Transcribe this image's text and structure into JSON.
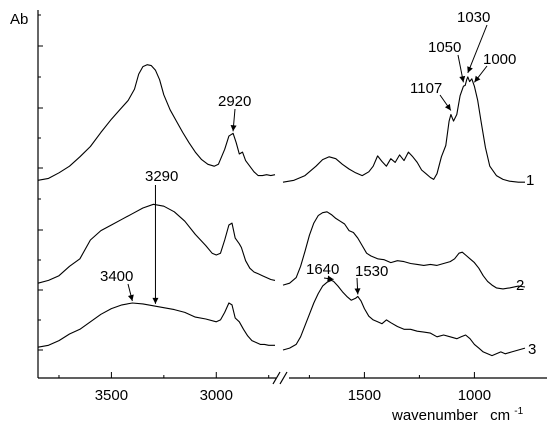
{
  "chart_data": {
    "type": "line",
    "title": "",
    "ylabel": "Ab",
    "xlabel": "wavenumber",
    "xunit": "cm",
    "xunit_sup": "-1",
    "x_reversed": true,
    "axis_break": true,
    "grid": false,
    "legend": "none",
    "xlim_left_panel": [
      3850,
      2720
    ],
    "xlim_right_panel": [
      1870,
      770
    ],
    "x_ticks": [
      {
        "value": 3500,
        "label": "3500"
      },
      {
        "value": 3000,
        "label": "3000"
      },
      {
        "value": 1500,
        "label": "1500"
      },
      {
        "value": 1000,
        "label": "1000"
      }
    ],
    "series": [
      {
        "name": "1",
        "offset": 0,
        "left": [
          [
            3850,
            0.05
          ],
          [
            3800,
            0.07
          ],
          [
            3750,
            0.13
          ],
          [
            3700,
            0.2
          ],
          [
            3650,
            0.3
          ],
          [
            3600,
            0.41
          ],
          [
            3550,
            0.56
          ],
          [
            3500,
            0.7
          ],
          [
            3460,
            0.8
          ],
          [
            3420,
            0.9
          ],
          [
            3390,
            1.02
          ],
          [
            3370,
            1.18
          ],
          [
            3350,
            1.26
          ],
          [
            3330,
            1.28
          ],
          [
            3310,
            1.27
          ],
          [
            3290,
            1.22
          ],
          [
            3270,
            1.12
          ],
          [
            3250,
            0.96
          ],
          [
            3220,
            0.8
          ],
          [
            3190,
            0.68
          ],
          [
            3160,
            0.56
          ],
          [
            3130,
            0.45
          ],
          [
            3100,
            0.35
          ],
          [
            3070,
            0.27
          ],
          [
            3040,
            0.22
          ],
          [
            3010,
            0.2
          ],
          [
            2990,
            0.22
          ],
          [
            2960,
            0.38
          ],
          [
            2940,
            0.52
          ],
          [
            2920,
            0.55
          ],
          [
            2905,
            0.45
          ],
          [
            2890,
            0.33
          ],
          [
            2875,
            0.35
          ],
          [
            2860,
            0.26
          ],
          [
            2840,
            0.2
          ],
          [
            2820,
            0.14
          ],
          [
            2800,
            0.1
          ],
          [
            2780,
            0.1
          ],
          [
            2760,
            0.11
          ],
          [
            2740,
            0.1
          ],
          [
            2720,
            0.11
          ]
        ],
        "right": [
          [
            1870,
            0.03
          ],
          [
            1820,
            0.05
          ],
          [
            1770,
            0.1
          ],
          [
            1720,
            0.2
          ],
          [
            1690,
            0.27
          ],
          [
            1660,
            0.3
          ],
          [
            1630,
            0.28
          ],
          [
            1600,
            0.22
          ],
          [
            1570,
            0.17
          ],
          [
            1540,
            0.13
          ],
          [
            1510,
            0.1
          ],
          [
            1480,
            0.14
          ],
          [
            1460,
            0.2
          ],
          [
            1440,
            0.31
          ],
          [
            1420,
            0.25
          ],
          [
            1400,
            0.2
          ],
          [
            1380,
            0.28
          ],
          [
            1360,
            0.24
          ],
          [
            1340,
            0.32
          ],
          [
            1320,
            0.26
          ],
          [
            1300,
            0.35
          ],
          [
            1280,
            0.3
          ],
          [
            1260,
            0.24
          ],
          [
            1240,
            0.16
          ],
          [
            1220,
            0.12
          ],
          [
            1200,
            0.08
          ],
          [
            1185,
            0.06
          ],
          [
            1170,
            0.12
          ],
          [
            1150,
            0.3
          ],
          [
            1130,
            0.42
          ],
          [
            1115,
            0.68
          ],
          [
            1107,
            0.75
          ],
          [
            1095,
            0.68
          ],
          [
            1080,
            0.75
          ],
          [
            1065,
            0.95
          ],
          [
            1050,
            1.05
          ],
          [
            1042,
            1.06
          ],
          [
            1035,
            1.12
          ],
          [
            1030,
            1.15
          ],
          [
            1022,
            1.1
          ],
          [
            1012,
            1.13
          ],
          [
            1000,
            1.05
          ],
          [
            985,
            0.9
          ],
          [
            970,
            0.68
          ],
          [
            950,
            0.4
          ],
          [
            930,
            0.2
          ],
          [
            900,
            0.1
          ],
          [
            870,
            0.06
          ],
          [
            840,
            0.04
          ],
          [
            800,
            0.03
          ],
          [
            770,
            0.03
          ]
        ]
      },
      {
        "name": "2",
        "offset": -1.0,
        "left": [
          [
            3850,
            0.04
          ],
          [
            3800,
            0.07
          ],
          [
            3750,
            0.12
          ],
          [
            3700,
            0.22
          ],
          [
            3650,
            0.3
          ],
          [
            3600,
            0.5
          ],
          [
            3550,
            0.6
          ],
          [
            3500,
            0.66
          ],
          [
            3450,
            0.72
          ],
          [
            3400,
            0.78
          ],
          [
            3350,
            0.84
          ],
          [
            3300,
            0.88
          ],
          [
            3250,
            0.86
          ],
          [
            3200,
            0.8
          ],
          [
            3150,
            0.7
          ],
          [
            3100,
            0.56
          ],
          [
            3050,
            0.44
          ],
          [
            3020,
            0.36
          ],
          [
            3000,
            0.34
          ],
          [
            2980,
            0.36
          ],
          [
            2960,
            0.5
          ],
          [
            2940,
            0.66
          ],
          [
            2925,
            0.68
          ],
          [
            2910,
            0.52
          ],
          [
            2890,
            0.46
          ],
          [
            2880,
            0.42
          ],
          [
            2860,
            0.28
          ],
          [
            2840,
            0.2
          ],
          [
            2820,
            0.16
          ],
          [
            2800,
            0.14
          ],
          [
            2780,
            0.12
          ],
          [
            2760,
            0.1
          ],
          [
            2740,
            0.08
          ],
          [
            2720,
            0.07
          ]
        ],
        "right": [
          [
            1870,
            0.02
          ],
          [
            1840,
            0.04
          ],
          [
            1810,
            0.1
          ],
          [
            1790,
            0.22
          ],
          [
            1770,
            0.38
          ],
          [
            1750,
            0.55
          ],
          [
            1730,
            0.68
          ],
          [
            1710,
            0.76
          ],
          [
            1690,
            0.79
          ],
          [
            1670,
            0.8
          ],
          [
            1650,
            0.77
          ],
          [
            1630,
            0.73
          ],
          [
            1610,
            0.7
          ],
          [
            1590,
            0.67
          ],
          [
            1570,
            0.6
          ],
          [
            1550,
            0.58
          ],
          [
            1530,
            0.52
          ],
          [
            1510,
            0.44
          ],
          [
            1490,
            0.36
          ],
          [
            1470,
            0.33
          ],
          [
            1440,
            0.3
          ],
          [
            1410,
            0.29
          ],
          [
            1380,
            0.26
          ],
          [
            1350,
            0.28
          ],
          [
            1320,
            0.27
          ],
          [
            1290,
            0.25
          ],
          [
            1260,
            0.24
          ],
          [
            1230,
            0.23
          ],
          [
            1200,
            0.24
          ],
          [
            1170,
            0.23
          ],
          [
            1140,
            0.25
          ],
          [
            1110,
            0.27
          ],
          [
            1090,
            0.3
          ],
          [
            1070,
            0.36
          ],
          [
            1055,
            0.37
          ],
          [
            1040,
            0.34
          ],
          [
            1020,
            0.3
          ],
          [
            1000,
            0.26
          ],
          [
            980,
            0.2
          ],
          [
            960,
            0.12
          ],
          [
            940,
            0.06
          ],
          [
            920,
            0.02
          ],
          [
            900,
            -0.01
          ],
          [
            870,
            -0.02
          ],
          [
            840,
            -0.01
          ],
          [
            800,
            0.01
          ],
          [
            770,
            0.0
          ]
        ]
      },
      {
        "name": "3",
        "offset": -2.0,
        "left": [
          [
            3850,
            0.03
          ],
          [
            3800,
            0.05
          ],
          [
            3750,
            0.1
          ],
          [
            3700,
            0.17
          ],
          [
            3650,
            0.22
          ],
          [
            3600,
            0.3
          ],
          [
            3550,
            0.38
          ],
          [
            3500,
            0.44
          ],
          [
            3450,
            0.48
          ],
          [
            3400,
            0.5
          ],
          [
            3350,
            0.49
          ],
          [
            3300,
            0.47
          ],
          [
            3250,
            0.45
          ],
          [
            3200,
            0.43
          ],
          [
            3150,
            0.4
          ],
          [
            3100,
            0.35
          ],
          [
            3050,
            0.33
          ],
          [
            3000,
            0.3
          ],
          [
            2980,
            0.32
          ],
          [
            2960,
            0.4
          ],
          [
            2940,
            0.5
          ],
          [
            2925,
            0.48
          ],
          [
            2910,
            0.34
          ],
          [
            2890,
            0.3
          ],
          [
            2870,
            0.22
          ],
          [
            2850,
            0.15
          ],
          [
            2830,
            0.1
          ],
          [
            2810,
            0.08
          ],
          [
            2790,
            0.06
          ],
          [
            2770,
            0.06
          ],
          [
            2750,
            0.05
          ],
          [
            2730,
            0.05
          ],
          [
            2720,
            0.05
          ]
        ],
        "right": [
          [
            1870,
            0.0
          ],
          [
            1840,
            0.02
          ],
          [
            1810,
            0.06
          ],
          [
            1790,
            0.14
          ],
          [
            1770,
            0.26
          ],
          [
            1750,
            0.38
          ],
          [
            1730,
            0.5
          ],
          [
            1710,
            0.6
          ],
          [
            1690,
            0.68
          ],
          [
            1670,
            0.72
          ],
          [
            1650,
            0.74
          ],
          [
            1640,
            0.73
          ],
          [
            1620,
            0.68
          ],
          [
            1600,
            0.62
          ],
          [
            1580,
            0.57
          ],
          [
            1560,
            0.53
          ],
          [
            1540,
            0.55
          ],
          [
            1530,
            0.57
          ],
          [
            1515,
            0.52
          ],
          [
            1500,
            0.44
          ],
          [
            1480,
            0.36
          ],
          [
            1460,
            0.32
          ],
          [
            1440,
            0.3
          ],
          [
            1420,
            0.28
          ],
          [
            1400,
            0.32
          ],
          [
            1380,
            0.29
          ],
          [
            1350,
            0.25
          ],
          [
            1320,
            0.22
          ],
          [
            1290,
            0.22
          ],
          [
            1260,
            0.2
          ],
          [
            1230,
            0.19
          ],
          [
            1200,
            0.18
          ],
          [
            1170,
            0.14
          ],
          [
            1140,
            0.16
          ],
          [
            1110,
            0.14
          ],
          [
            1080,
            0.12
          ],
          [
            1060,
            0.14
          ],
          [
            1040,
            0.16
          ],
          [
            1020,
            0.12
          ],
          [
            1000,
            0.06
          ],
          [
            980,
            0.02
          ],
          [
            960,
            -0.02
          ],
          [
            940,
            -0.04
          ],
          [
            920,
            -0.06
          ],
          [
            900,
            -0.04
          ],
          [
            880,
            -0.02
          ],
          [
            860,
            -0.04
          ],
          [
            830,
            -0.02
          ],
          [
            800,
            0.0
          ],
          [
            770,
            0.02
          ]
        ]
      }
    ],
    "annotations": [
      {
        "label": "2920",
        "series": 0,
        "x": 2920
      },
      {
        "label": "1107",
        "series": 0,
        "x": 1107
      },
      {
        "label": "1050",
        "series": 0,
        "x": 1050
      },
      {
        "label": "1030",
        "series": 0,
        "x": 1030
      },
      {
        "label": "1000",
        "series": 0,
        "x": 1000
      },
      {
        "label": "3290",
        "series": 2,
        "x": 3290,
        "style": "vertical-line"
      },
      {
        "label": "3400",
        "series": 2,
        "x": 3400
      },
      {
        "label": "1640",
        "series": 2,
        "x": 1640
      },
      {
        "label": "1530",
        "series": 2,
        "x": 1530
      }
    ]
  }
}
